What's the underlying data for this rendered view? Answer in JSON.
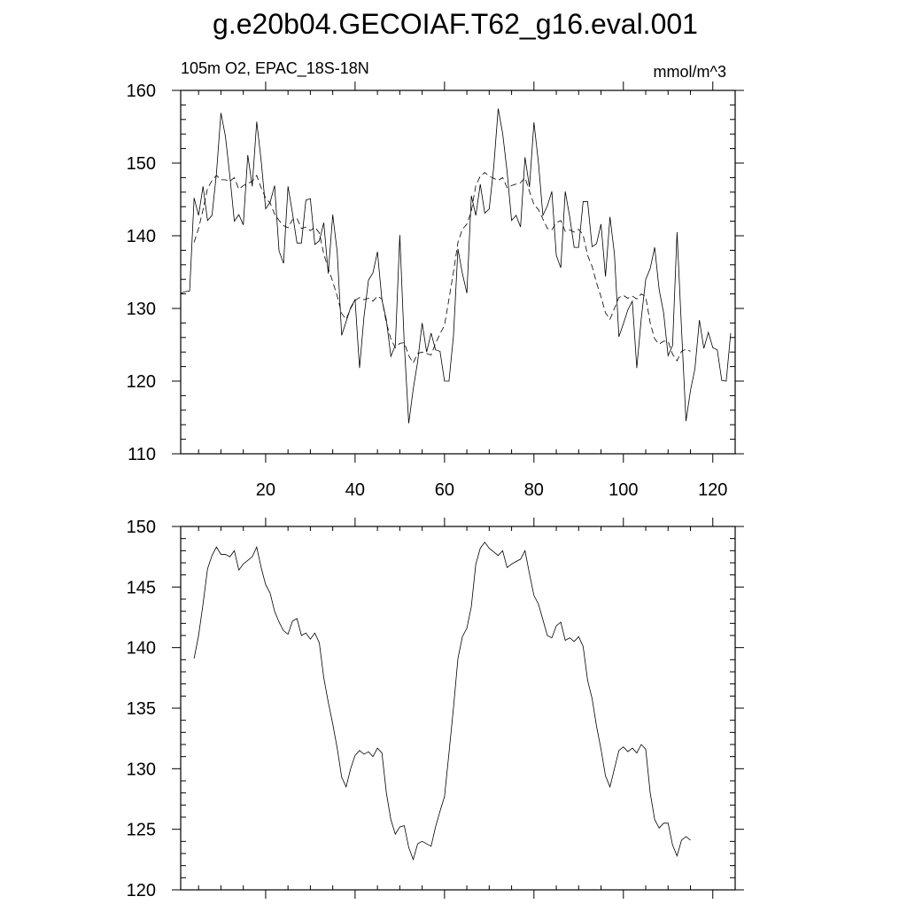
{
  "title": "g.e20b04.GECOIAF.T62_g16.eval.001",
  "chart_data": [
    {
      "type": "line",
      "left_label": "105m O2, EPAC_18S-18N",
      "right_label": "mmol/m^3",
      "xlim": [
        1,
        125
      ],
      "ylim": [
        110,
        160
      ],
      "x_ticks": [
        20,
        40,
        60,
        80,
        100,
        120
      ],
      "x_tick_labels": [
        "20",
        "40",
        "60",
        "80",
        "100",
        "120"
      ],
      "y_ticks": [
        110,
        120,
        130,
        140,
        150,
        160
      ],
      "y_tick_labels": [
        "110",
        "120",
        "130",
        "140",
        "150",
        "160"
      ],
      "grid": false,
      "series": [
        {
          "style": "solid",
          "x_start": 1,
          "values": [
            132.1,
            132.3,
            132.4,
            145.2,
            142.8,
            146.8,
            142.1,
            142.8,
            148.6,
            156.9,
            153.7,
            148.2,
            142.0,
            142.9,
            141.5,
            151.1,
            146.8,
            155.7,
            150.3,
            143.7,
            144.6,
            146.9,
            137.9,
            136.2,
            146.8,
            143.1,
            139.0,
            139.0,
            144.9,
            145.1,
            138.8,
            139.3,
            141.8,
            134.8,
            142.9,
            137.8,
            126.3,
            128.2,
            130.1,
            131.2,
            121.8,
            128.9,
            133.9,
            134.9,
            137.8,
            131.2,
            128.4,
            123.4,
            124.9,
            140.1,
            125.1,
            114.2,
            118.9,
            122.7,
            128.0,
            124.0,
            126.6,
            124.3,
            124.1,
            120.0,
            120.0,
            126.2,
            138.2,
            134.8,
            132.1,
            145.5,
            142.8,
            147.1,
            143.1,
            143.7,
            149.4,
            157.5,
            154.1,
            148.8,
            142.1,
            142.8,
            141.2,
            150.8,
            146.7,
            155.6,
            150.1,
            142.8,
            144.1,
            146.1,
            137.3,
            135.6,
            146.1,
            142.6,
            138.4,
            138.4,
            144.7,
            144.7,
            138.5,
            138.9,
            141.6,
            134.4,
            142.6,
            137.5,
            126.1,
            127.9,
            129.8,
            131.0,
            121.8,
            128.6,
            134.0,
            135.5,
            138.4,
            132.6,
            129.4,
            123.5,
            124.9,
            140.5,
            127.2,
            114.5,
            118.7,
            121.7,
            128.4,
            124.5,
            126.7,
            124.6,
            124.3,
            120.1,
            120.0,
            126.6
          ]
        },
        {
          "style": "dashed",
          "x_start": 4,
          "values": [
            139.1,
            141.0,
            143.6,
            146.5,
            147.6,
            148.3,
            147.7,
            147.7,
            147.5,
            148.0,
            146.4,
            146.9,
            147.2,
            147.5,
            148.3,
            146.6,
            145.2,
            144.5,
            143.0,
            142.1,
            141.4,
            141.1,
            142.2,
            142.4,
            141.0,
            141.2,
            140.7,
            141.2,
            140.4,
            137.5,
            135.5,
            133.7,
            131.7,
            129.3,
            128.5,
            130.0,
            131.1,
            131.5,
            131.2,
            131.4,
            131.0,
            131.7,
            131.3,
            128.0,
            125.8,
            124.6,
            125.2,
            125.3,
            123.5,
            122.5,
            123.8,
            124.0,
            123.8,
            123.6,
            125.2,
            126.5,
            127.7,
            131.3,
            135.0,
            139.1,
            140.9,
            141.6,
            143.4,
            146.9,
            148.2,
            148.7,
            148.2,
            147.9,
            147.6,
            148.0,
            146.6,
            146.9,
            147.1,
            147.3,
            148.0,
            146.1,
            144.3,
            143.6,
            142.3,
            141.0,
            140.8,
            141.8,
            142.1,
            140.6,
            140.8,
            140.5,
            140.9,
            140.1,
            137.3,
            135.8,
            133.5,
            131.6,
            129.4,
            128.5,
            130.0,
            131.5,
            131.8,
            131.4,
            131.7,
            131.3,
            132.0,
            131.6,
            128.0,
            125.8,
            125.1,
            125.5,
            125.5,
            123.7,
            122.8,
            124.1,
            124.4,
            124.1
          ]
        }
      ]
    },
    {
      "type": "line",
      "xlim": [
        1,
        125
      ],
      "ylim": [
        120,
        150
      ],
      "x_ticks": [
        20,
        40,
        60,
        80,
        100,
        120
      ],
      "y_ticks": [
        120,
        125,
        130,
        135,
        140,
        145,
        150
      ],
      "y_tick_labels": [
        "120",
        "125",
        "130",
        "135",
        "140",
        "145",
        "150"
      ],
      "grid": false,
      "series": [
        {
          "style": "solid",
          "x_start": 4,
          "values": [
            139.1,
            141.0,
            143.6,
            146.5,
            147.6,
            148.3,
            147.7,
            147.7,
            147.5,
            148.0,
            146.4,
            146.9,
            147.2,
            147.5,
            148.3,
            146.6,
            145.2,
            144.5,
            143.0,
            142.1,
            141.4,
            141.1,
            142.2,
            142.4,
            141.0,
            141.2,
            140.7,
            141.2,
            140.4,
            137.5,
            135.5,
            133.7,
            131.7,
            129.3,
            128.5,
            130.0,
            131.1,
            131.5,
            131.2,
            131.4,
            131.0,
            131.7,
            131.3,
            128.0,
            125.8,
            124.6,
            125.2,
            125.3,
            123.5,
            122.5,
            123.8,
            124.0,
            123.8,
            123.6,
            125.2,
            126.5,
            127.7,
            131.3,
            135.0,
            139.1,
            140.9,
            141.6,
            143.4,
            146.9,
            148.2,
            148.7,
            148.2,
            147.9,
            147.6,
            148.0,
            146.6,
            146.9,
            147.1,
            147.3,
            148.0,
            146.1,
            144.3,
            143.6,
            142.3,
            141.0,
            140.8,
            141.8,
            142.1,
            140.6,
            140.8,
            140.5,
            140.9,
            140.1,
            137.3,
            135.8,
            133.5,
            131.6,
            129.4,
            128.5,
            130.0,
            131.5,
            131.8,
            131.4,
            131.7,
            131.3,
            132.0,
            131.6,
            128.0,
            125.8,
            125.1,
            125.5,
            125.5,
            123.7,
            122.8,
            124.1,
            124.4,
            124.1
          ]
        }
      ]
    }
  ]
}
